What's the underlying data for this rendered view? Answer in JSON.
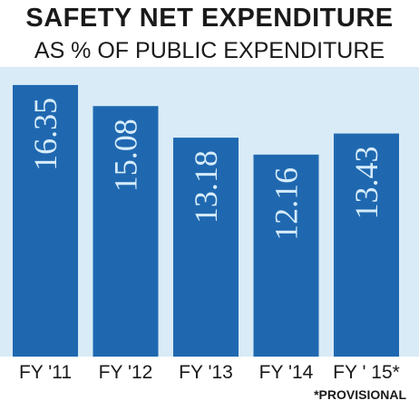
{
  "title": "SAFETY NET EXPENDITURE",
  "subtitle": "AS % OF PUBLIC EXPENDITURE",
  "footnote": "*PROVISIONAL",
  "colors": {
    "bar": "#1f68b0",
    "background": "#d8ebf6",
    "value_label": "#d6ecfa",
    "text": "#1a1a1a"
  },
  "chart_data": {
    "type": "bar",
    "title": "SAFETY NET EXPENDITURE",
    "subtitle": "AS % OF PUBLIC EXPENDITURE",
    "categories": [
      "FY '11",
      "FY '12",
      "FY '13",
      "FY '14",
      "FY ' 15*"
    ],
    "values": [
      16.35,
      15.08,
      13.18,
      12.16,
      13.43
    ],
    "value_labels": [
      "16.35",
      "15.08",
      "13.18",
      "12.16",
      "13.43"
    ],
    "xlabel": "",
    "ylabel": "",
    "ylim": [
      0,
      17
    ],
    "grid": false,
    "legend": "none",
    "value_label_orientation": "vertical"
  }
}
